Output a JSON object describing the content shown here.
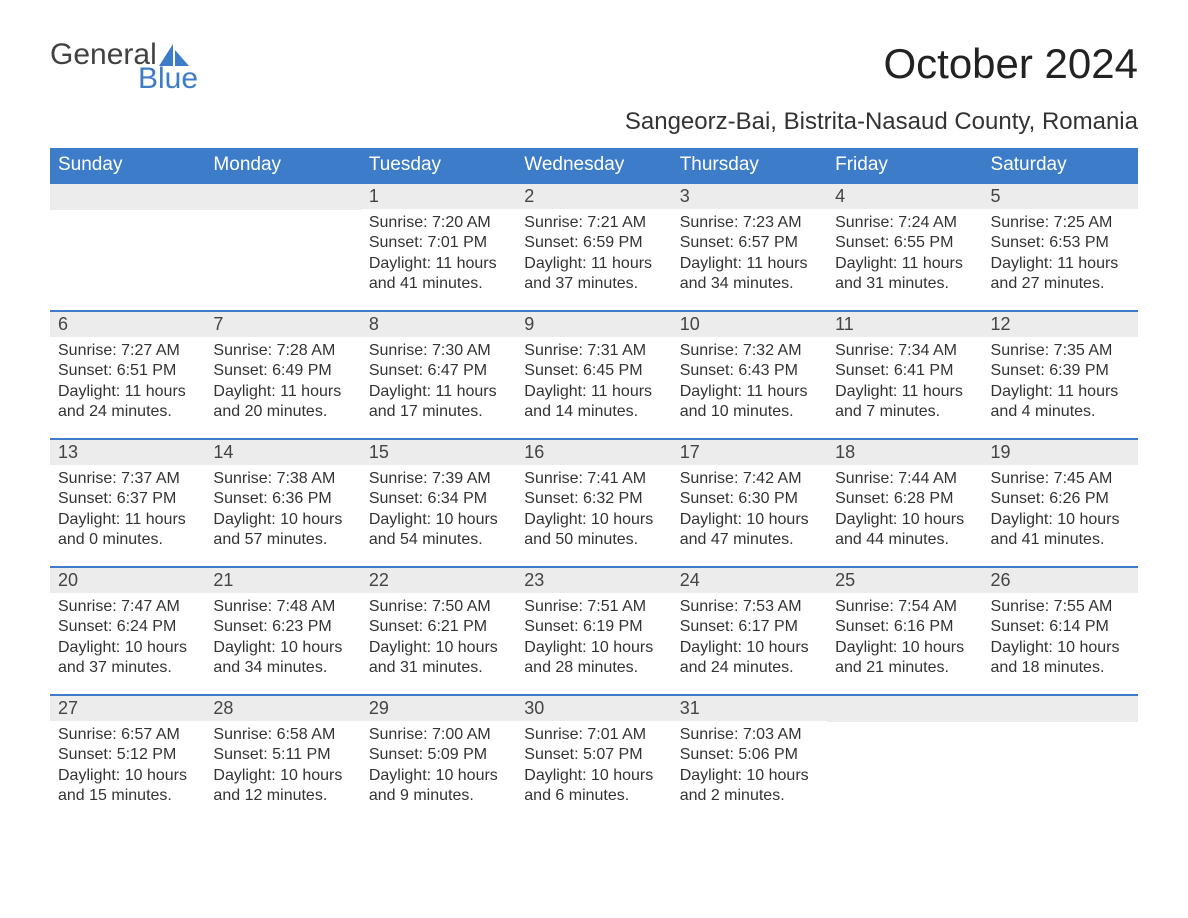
{
  "logo": {
    "text1": "General",
    "text2": "Blue",
    "sail_color": "#3d7cc9",
    "text1_color": "#414141"
  },
  "title": "October 2024",
  "location": "Sangeorz-Bai, Bistrita-Nasaud County, Romania",
  "header_bg": "#3d7cc9",
  "header_text_color": "#ffffff",
  "daynum_bg": "#ececec",
  "border_color": "#3d7cc9",
  "weekdays": [
    "Sunday",
    "Monday",
    "Tuesday",
    "Wednesday",
    "Thursday",
    "Friday",
    "Saturday"
  ],
  "weeks": [
    [
      null,
      null,
      {
        "n": "1",
        "sr": "7:20 AM",
        "ss": "7:01 PM",
        "dl": "11 hours and 41 minutes."
      },
      {
        "n": "2",
        "sr": "7:21 AM",
        "ss": "6:59 PM",
        "dl": "11 hours and 37 minutes."
      },
      {
        "n": "3",
        "sr": "7:23 AM",
        "ss": "6:57 PM",
        "dl": "11 hours and 34 minutes."
      },
      {
        "n": "4",
        "sr": "7:24 AM",
        "ss": "6:55 PM",
        "dl": "11 hours and 31 minutes."
      },
      {
        "n": "5",
        "sr": "7:25 AM",
        "ss": "6:53 PM",
        "dl": "11 hours and 27 minutes."
      }
    ],
    [
      {
        "n": "6",
        "sr": "7:27 AM",
        "ss": "6:51 PM",
        "dl": "11 hours and 24 minutes."
      },
      {
        "n": "7",
        "sr": "7:28 AM",
        "ss": "6:49 PM",
        "dl": "11 hours and 20 minutes."
      },
      {
        "n": "8",
        "sr": "7:30 AM",
        "ss": "6:47 PM",
        "dl": "11 hours and 17 minutes."
      },
      {
        "n": "9",
        "sr": "7:31 AM",
        "ss": "6:45 PM",
        "dl": "11 hours and 14 minutes."
      },
      {
        "n": "10",
        "sr": "7:32 AM",
        "ss": "6:43 PM",
        "dl": "11 hours and 10 minutes."
      },
      {
        "n": "11",
        "sr": "7:34 AM",
        "ss": "6:41 PM",
        "dl": "11 hours and 7 minutes."
      },
      {
        "n": "12",
        "sr": "7:35 AM",
        "ss": "6:39 PM",
        "dl": "11 hours and 4 minutes."
      }
    ],
    [
      {
        "n": "13",
        "sr": "7:37 AM",
        "ss": "6:37 PM",
        "dl": "11 hours and 0 minutes."
      },
      {
        "n": "14",
        "sr": "7:38 AM",
        "ss": "6:36 PM",
        "dl": "10 hours and 57 minutes."
      },
      {
        "n": "15",
        "sr": "7:39 AM",
        "ss": "6:34 PM",
        "dl": "10 hours and 54 minutes."
      },
      {
        "n": "16",
        "sr": "7:41 AM",
        "ss": "6:32 PM",
        "dl": "10 hours and 50 minutes."
      },
      {
        "n": "17",
        "sr": "7:42 AM",
        "ss": "6:30 PM",
        "dl": "10 hours and 47 minutes."
      },
      {
        "n": "18",
        "sr": "7:44 AM",
        "ss": "6:28 PM",
        "dl": "10 hours and 44 minutes."
      },
      {
        "n": "19",
        "sr": "7:45 AM",
        "ss": "6:26 PM",
        "dl": "10 hours and 41 minutes."
      }
    ],
    [
      {
        "n": "20",
        "sr": "7:47 AM",
        "ss": "6:24 PM",
        "dl": "10 hours and 37 minutes."
      },
      {
        "n": "21",
        "sr": "7:48 AM",
        "ss": "6:23 PM",
        "dl": "10 hours and 34 minutes."
      },
      {
        "n": "22",
        "sr": "7:50 AM",
        "ss": "6:21 PM",
        "dl": "10 hours and 31 minutes."
      },
      {
        "n": "23",
        "sr": "7:51 AM",
        "ss": "6:19 PM",
        "dl": "10 hours and 28 minutes."
      },
      {
        "n": "24",
        "sr": "7:53 AM",
        "ss": "6:17 PM",
        "dl": "10 hours and 24 minutes."
      },
      {
        "n": "25",
        "sr": "7:54 AM",
        "ss": "6:16 PM",
        "dl": "10 hours and 21 minutes."
      },
      {
        "n": "26",
        "sr": "7:55 AM",
        "ss": "6:14 PM",
        "dl": "10 hours and 18 minutes."
      }
    ],
    [
      {
        "n": "27",
        "sr": "6:57 AM",
        "ss": "5:12 PM",
        "dl": "10 hours and 15 minutes."
      },
      {
        "n": "28",
        "sr": "6:58 AM",
        "ss": "5:11 PM",
        "dl": "10 hours and 12 minutes."
      },
      {
        "n": "29",
        "sr": "7:00 AM",
        "ss": "5:09 PM",
        "dl": "10 hours and 9 minutes."
      },
      {
        "n": "30",
        "sr": "7:01 AM",
        "ss": "5:07 PM",
        "dl": "10 hours and 6 minutes."
      },
      {
        "n": "31",
        "sr": "7:03 AM",
        "ss": "5:06 PM",
        "dl": "10 hours and 2 minutes."
      },
      null,
      null
    ]
  ],
  "labels": {
    "sunrise": "Sunrise: ",
    "sunset": "Sunset: ",
    "daylight": "Daylight: "
  }
}
